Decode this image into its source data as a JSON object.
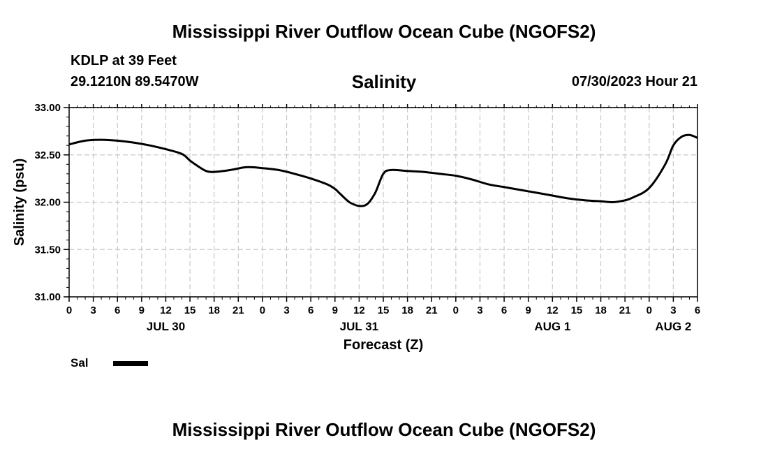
{
  "header": {
    "title": "Mississippi River Outflow Ocean Cube (NGOFS2)",
    "station": "KDLP at 39 Feet",
    "coords": "29.1210N  89.5470W",
    "subtitle": "Salinity",
    "datetime": "07/30/2023 Hour 21"
  },
  "footer": {
    "title": "Mississippi River Outflow Ocean Cube (NGOFS2)"
  },
  "legend": {
    "label": "Sal",
    "color": "#000000"
  },
  "chart_data": {
    "type": "line",
    "title": "Salinity",
    "xlabel": "Forecast (Z)",
    "ylabel": "Salinity (psu)",
    "xlim": [
      0,
      78
    ],
    "ylim": [
      31.0,
      33.0
    ],
    "grid": true,
    "y_ticks": [
      "31.00",
      "31.50",
      "32.00",
      "32.50",
      "33.00"
    ],
    "x_tick_labels": [
      "0",
      "3",
      "6",
      "9",
      "12",
      "15",
      "18",
      "21",
      "0",
      "3",
      "6",
      "9",
      "12",
      "15",
      "18",
      "21",
      "0",
      "3",
      "6",
      "9",
      "12",
      "15",
      "18",
      "21",
      "0",
      "3",
      "6"
    ],
    "day_labels": [
      {
        "label": "JUL 30",
        "hour": 12
      },
      {
        "label": "JUL 31",
        "hour": 36
      },
      {
        "label": "AUG 1",
        "hour": 60
      },
      {
        "label": "AUG 2",
        "hour": 75
      }
    ],
    "series": [
      {
        "name": "Sal",
        "x": [
          0,
          2,
          4,
          6,
          8,
          10,
          12,
          14,
          15,
          16,
          17,
          18,
          20,
          22,
          24,
          26,
          28,
          30,
          32,
          33,
          33.5,
          34,
          34.5,
          35,
          36,
          37,
          38,
          39,
          40,
          42,
          44,
          46,
          48,
          50,
          52,
          54,
          56,
          58,
          60,
          62,
          64,
          66,
          67.5,
          69,
          70,
          72,
          74,
          75,
          76,
          77,
          78
        ],
        "values": [
          32.61,
          32.65,
          32.66,
          32.65,
          32.63,
          32.6,
          32.56,
          32.51,
          32.44,
          32.38,
          32.33,
          32.32,
          32.34,
          32.37,
          32.36,
          32.34,
          32.3,
          32.25,
          32.19,
          32.14,
          32.1,
          32.06,
          32.02,
          31.99,
          31.96,
          31.98,
          32.1,
          32.3,
          32.34,
          32.33,
          32.32,
          32.3,
          32.28,
          32.24,
          32.19,
          32.16,
          32.13,
          32.1,
          32.07,
          32.04,
          32.02,
          32.01,
          32.0,
          32.02,
          32.05,
          32.15,
          32.4,
          32.6,
          32.69,
          32.71,
          32.68
        ]
      }
    ]
  }
}
